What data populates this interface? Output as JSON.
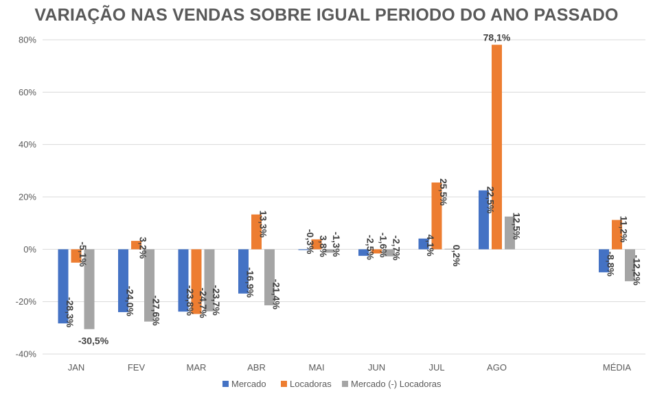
{
  "chart_data": {
    "type": "bar",
    "title": "VARIAÇÃO NAS VENDAS SOBRE IGUAL PERIODO DO ANO PASSADO",
    "categories": [
      "JAN",
      "FEV",
      "MAR",
      "ABR",
      "MAI",
      "JUN",
      "JUL",
      "AGO",
      "MÉDIA"
    ],
    "series": [
      {
        "name": "Mercado",
        "color": "#4472C4",
        "values": [
          -28.3,
          -24.0,
          -23.8,
          -16.9,
          -0.3,
          -2.5,
          4.1,
          22.5,
          -8.8
        ],
        "labels": [
          "-28,3%",
          "-24,0%",
          "-23,8%",
          "-16,9%",
          "-0,3%",
          "-2,5%",
          "4,1%",
          "22,5%",
          "-8,8%"
        ]
      },
      {
        "name": "Locadoras",
        "color": "#ED7D31",
        "values": [
          -5.1,
          3.2,
          -24.7,
          13.3,
          3.8,
          -1.6,
          25.5,
          78.1,
          11.2
        ],
        "labels": [
          "-5,1%",
          "3,2%",
          "-24,7%",
          "13,3%",
          "3,8%",
          "-1,6%",
          "25,5%",
          "78,1%",
          "11,2%"
        ]
      },
      {
        "name": "Mercado (-) Locadoras",
        "color": "#A5A5A5",
        "values": [
          -30.5,
          -27.6,
          -23.7,
          -21.4,
          -1.3,
          -2.7,
          0.2,
          12.5,
          -12.2
        ],
        "labels": [
          "-30,5%",
          "-27,6%",
          "-23,7%",
          "-21,4%",
          "-1,3%",
          "-2,7%",
          "0,2%",
          "12,5%",
          "-12,2%"
        ]
      }
    ],
    "yaxis": {
      "ylim": [
        -40,
        80
      ],
      "ticks": [
        -40,
        -20,
        0,
        20,
        40,
        60,
        80
      ],
      "tick_labels": [
        "-40%",
        "-20%",
        "0%",
        "20%",
        "40%",
        "60%",
        "80%"
      ]
    },
    "grid": true,
    "legend": "bottom"
  }
}
